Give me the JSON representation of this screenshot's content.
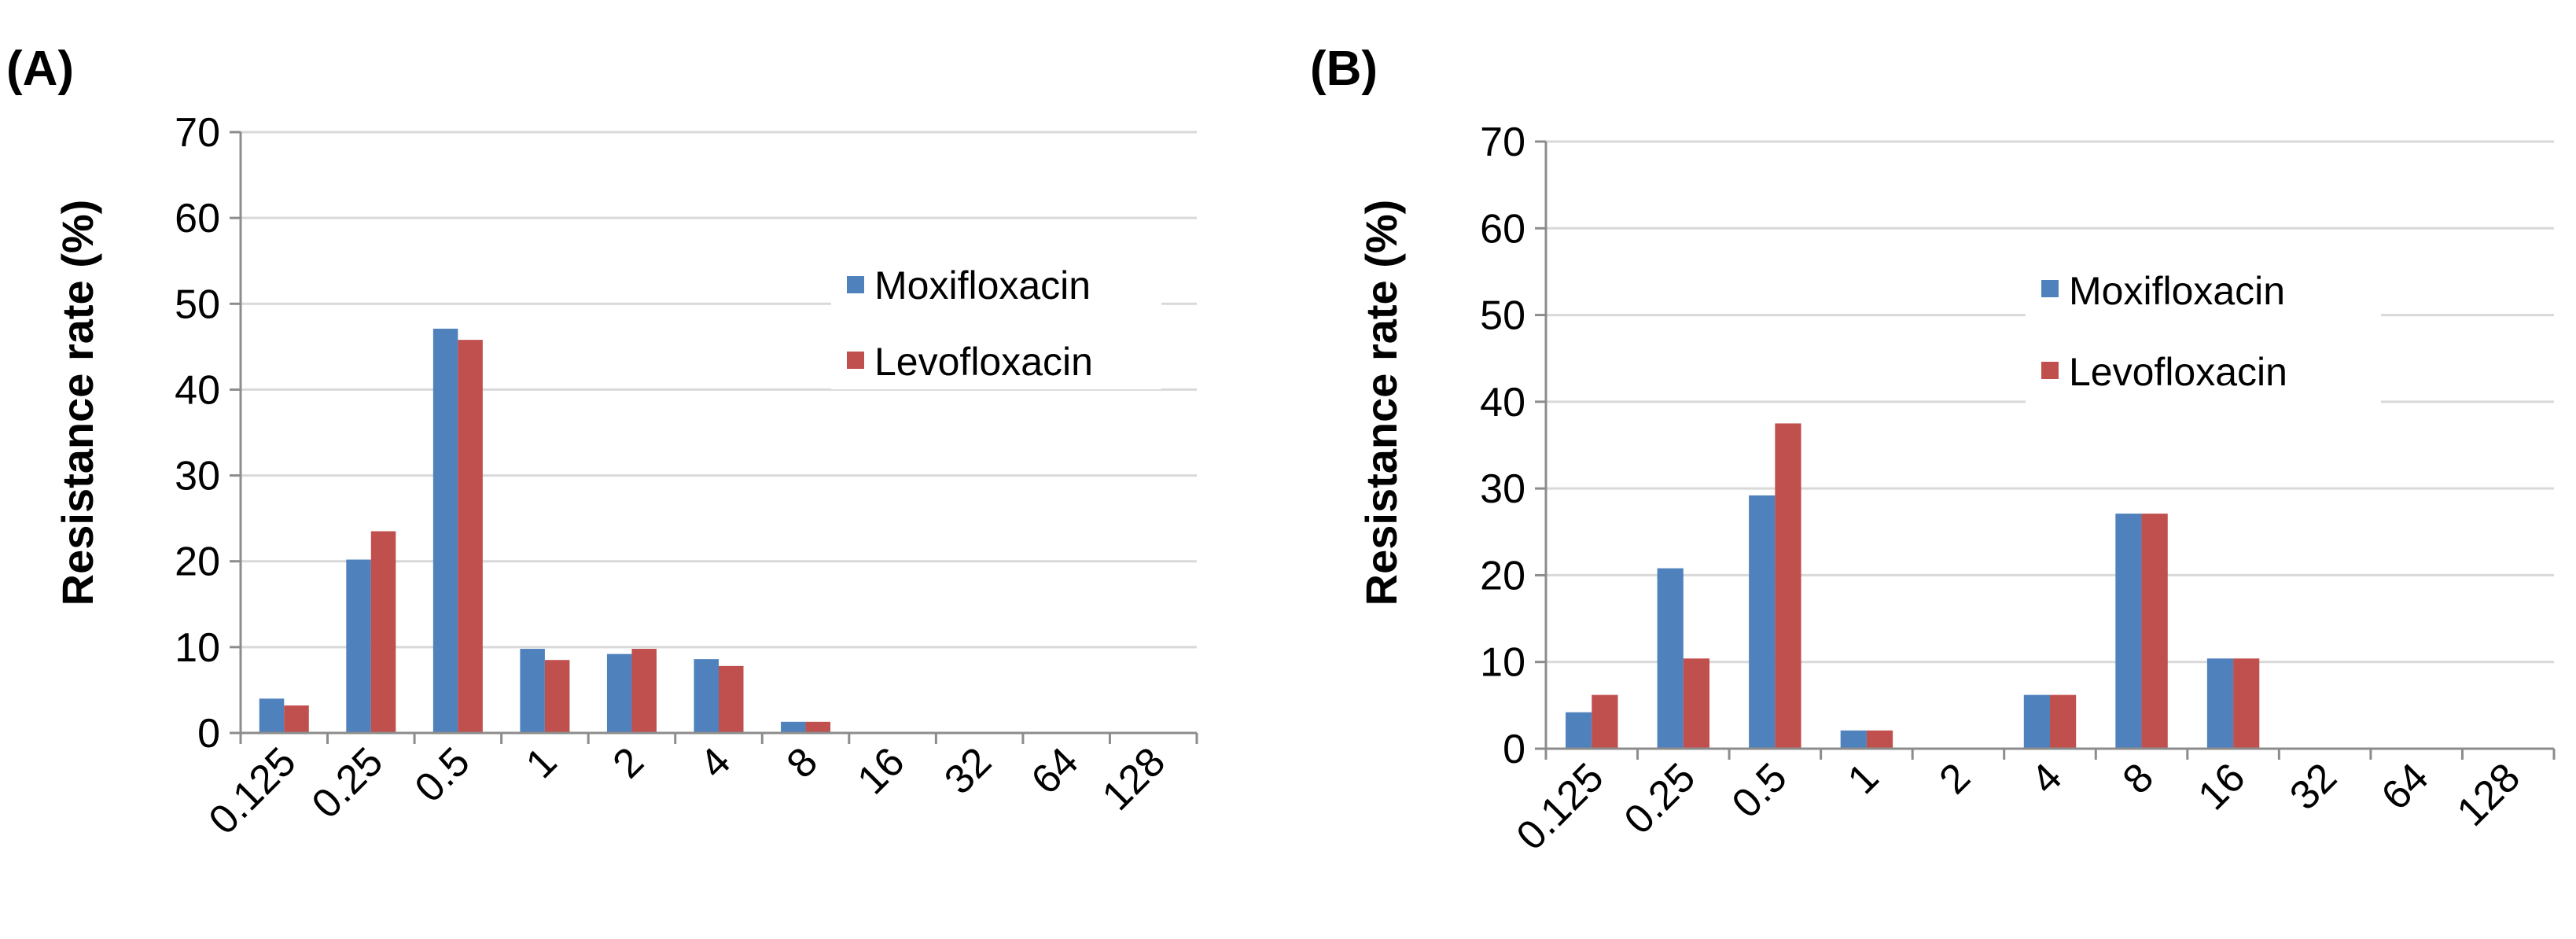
{
  "chart_data": [
    {
      "type": "bar",
      "panel_label": "(A)",
      "categories": [
        "0.125",
        "0.25",
        "0.5",
        "1",
        "2",
        "4",
        "8",
        "16",
        "32",
        "64",
        "128"
      ],
      "series": [
        {
          "name": "Moxifloxacin",
          "color": "#4f81bd",
          "values": [
            4.0,
            20.2,
            47.1,
            9.8,
            9.2,
            8.6,
            1.3,
            0,
            0,
            0,
            0
          ]
        },
        {
          "name": "Levofloxacin",
          "color": "#c0504d",
          "values": [
            3.2,
            23.5,
            45.8,
            8.5,
            9.8,
            7.8,
            1.3,
            0,
            0,
            0,
            0
          ]
        }
      ],
      "ylabel": "Resistance rate (%)",
      "xlabel": "",
      "ylim": [
        0,
        70
      ],
      "yticks": [
        "0",
        "10",
        "20",
        "30",
        "40",
        "50",
        "60",
        "70"
      ],
      "grid": true,
      "legend_position": "right"
    },
    {
      "type": "bar",
      "panel_label": "(B)",
      "categories": [
        "0.125",
        "0.25",
        "0.5",
        "1",
        "2",
        "4",
        "8",
        "16",
        "32",
        "64",
        "128"
      ],
      "series": [
        {
          "name": "Moxifloxacin",
          "color": "#4f81bd",
          "values": [
            4.2,
            20.8,
            29.2,
            2.1,
            0,
            6.2,
            27.1,
            10.4,
            0,
            0,
            0
          ]
        },
        {
          "name": "Levofloxacin",
          "color": "#c0504d",
          "values": [
            6.2,
            10.4,
            37.5,
            2.1,
            0,
            6.2,
            27.1,
            10.4,
            0,
            0,
            0
          ]
        }
      ],
      "ylabel": "Resistance rate (%)",
      "xlabel": "",
      "ylim": [
        0,
        70
      ],
      "yticks": [
        "0",
        "10",
        "20",
        "30",
        "40",
        "50",
        "60",
        "70"
      ],
      "grid": true,
      "legend_position": "center-right"
    }
  ]
}
